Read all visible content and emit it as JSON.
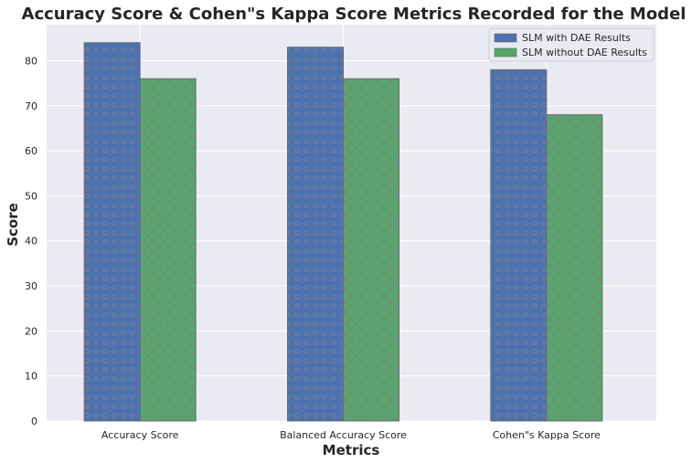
{
  "chart_data": {
    "type": "bar",
    "title": "Accuracy Score & Cohen\"s Kappa Score Metrics Recorded for the Model",
    "xlabel": "Metrics",
    "ylabel": "Score",
    "categories": [
      "Accuracy Score",
      "Balanced Accuracy Score",
      "Cohen\"s Kappa Score"
    ],
    "series": [
      {
        "name": "SLM with DAE Results",
        "values": [
          84,
          83,
          78
        ],
        "color": "#4c72b0",
        "hatch": "dots"
      },
      {
        "name": "SLM without DAE Results",
        "values": [
          76,
          76,
          68
        ],
        "color": "#55a868",
        "hatch": "crosshatch"
      }
    ],
    "ylim": [
      0,
      88
    ],
    "yticks": [
      0,
      10,
      20,
      30,
      40,
      50,
      60,
      70,
      80
    ],
    "grid": true,
    "legend_position": "top-right",
    "background_color": "#eaeaf2"
  }
}
